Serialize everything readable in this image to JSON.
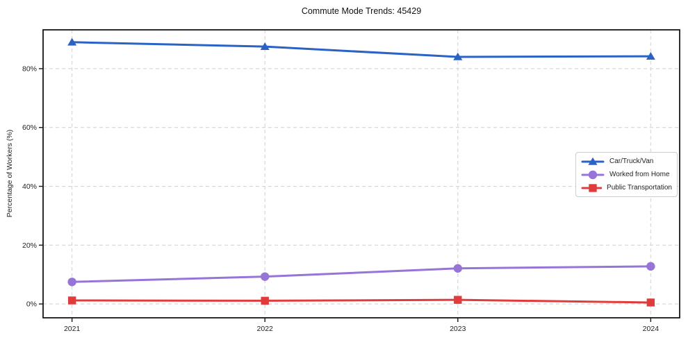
{
  "chart_data": {
    "type": "line",
    "title": "Commute Mode Trends: 45429",
    "xlabel": "",
    "ylabel": "Percentage of Workers (%)",
    "x": [
      2021,
      2022,
      2023,
      2024
    ],
    "x_tick_labels": [
      "2021",
      "2022",
      "2023",
      "2024"
    ],
    "y_ticks": [
      0,
      20,
      40,
      60,
      80
    ],
    "y_tick_suffix": "%",
    "xlim": [
      2020.85,
      2024.15
    ],
    "ylim": [
      -4.7,
      93.2
    ],
    "grid": true,
    "legend_position": "middle-right",
    "series": [
      {
        "name": "Car/Truck/Van",
        "color": "#2b62c5",
        "marker": "triangle",
        "values": [
          89.0,
          87.5,
          84.0,
          84.2
        ]
      },
      {
        "name": "Worked from Home",
        "color": "#9774d8",
        "marker": "circle",
        "values": [
          7.5,
          9.3,
          12.1,
          12.8
        ]
      },
      {
        "name": "Public Transportation",
        "color": "#e13c3c",
        "marker": "square",
        "values": [
          1.2,
          1.1,
          1.4,
          0.5
        ]
      }
    ],
    "colors": {
      "frame": "#161616",
      "grid": "#d4d4d4",
      "tick_text": "#222222"
    }
  }
}
